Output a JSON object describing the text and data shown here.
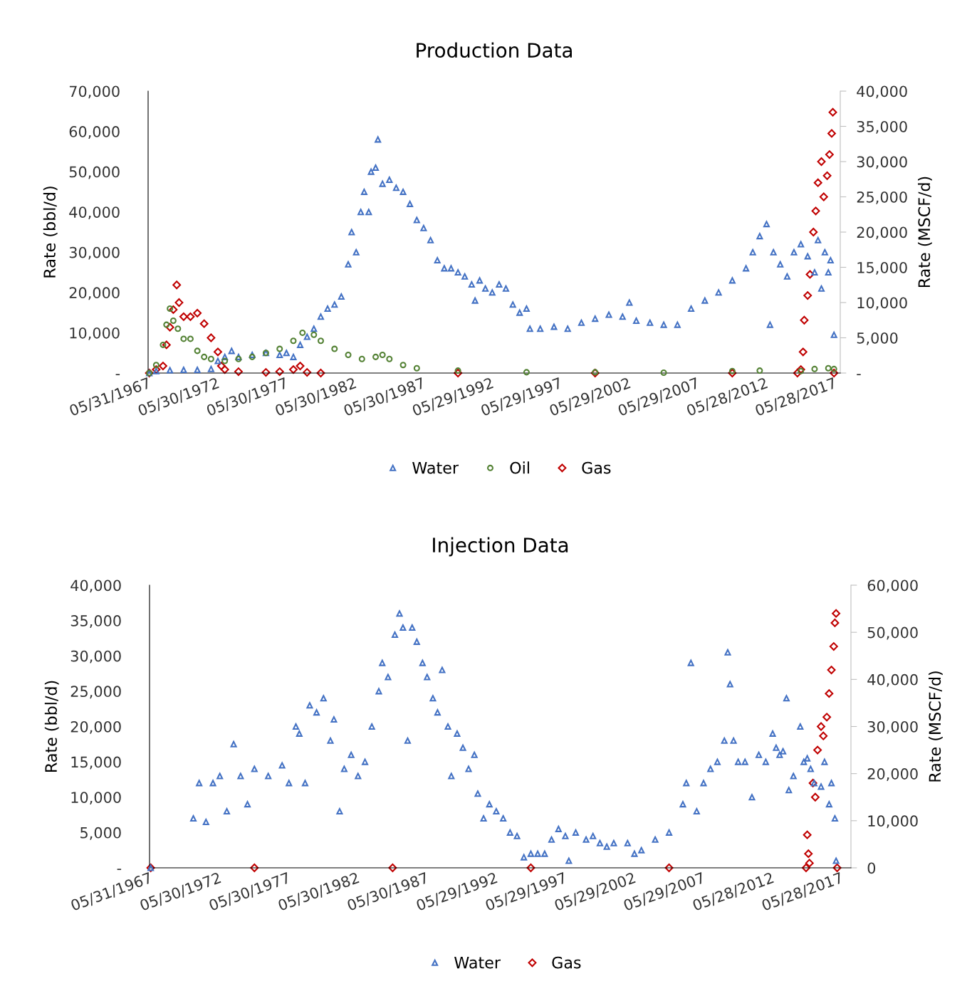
{
  "chart_data": [
    {
      "type": "scatter",
      "title": "Production Data",
      "ylabel": "Rate (bbl/d)",
      "y2label": "Rate (MSCF/d)",
      "legend": "bottom",
      "grid": false,
      "xlim": [
        "1967-05-31",
        "2017-11-15"
      ],
      "xticks": [
        {
          "value": "1967-05-31",
          "label": "05/31/1967"
        },
        {
          "value": "1972-05-30",
          "label": "05/30/1972"
        },
        {
          "value": "1977-05-30",
          "label": "05/30/1977"
        },
        {
          "value": "1982-05-30",
          "label": "05/30/1982"
        },
        {
          "value": "1987-05-30",
          "label": "05/30/1987"
        },
        {
          "value": "1992-05-29",
          "label": "05/29/1992"
        },
        {
          "value": "1997-05-29",
          "label": "05/29/1997"
        },
        {
          "value": "2002-05-29",
          "label": "05/29/2002"
        },
        {
          "value": "2007-05-29",
          "label": "05/29/2007"
        },
        {
          "value": "2012-05-28",
          "label": "05/28/2012"
        },
        {
          "value": "2017-05-28",
          "label": "05/28/2017"
        }
      ],
      "ylim": [
        0,
        70000
      ],
      "yticks": [
        {
          "value": 0,
          "label": "-"
        },
        {
          "value": 10000,
          "label": "10,000"
        },
        {
          "value": 20000,
          "label": "20,000"
        },
        {
          "value": 30000,
          "label": "30,000"
        },
        {
          "value": 40000,
          "label": "40,000"
        },
        {
          "value": 50000,
          "label": "50,000"
        },
        {
          "value": 60000,
          "label": "60,000"
        },
        {
          "value": 70000,
          "label": "70,000"
        }
      ],
      "y2lim": [
        0,
        40000
      ],
      "y2ticks": [
        {
          "value": 0,
          "label": "-"
        },
        {
          "value": 5000,
          "label": "5,000"
        },
        {
          "value": 10000,
          "label": "10,000"
        },
        {
          "value": 15000,
          "label": "15,000"
        },
        {
          "value": 20000,
          "label": "20,000"
        },
        {
          "value": 25000,
          "label": "25,000"
        },
        {
          "value": 30000,
          "label": "30,000"
        },
        {
          "value": 35000,
          "label": "35,000"
        },
        {
          "value": 40000,
          "label": "40,000"
        }
      ],
      "series": [
        {
          "name": "Water",
          "color": "#4472c4",
          "marker": "triangle",
          "x": [
            "1967-07",
            "1968-01",
            "1969-01",
            "1970-01",
            "1971-01",
            "1972-01",
            "1972-07",
            "1973-01",
            "1973-07",
            "1974-01",
            "1975-01",
            "1976-01",
            "1977-01",
            "1977-07",
            "1978-01",
            "1978-07",
            "1979-01",
            "1979-07",
            "1980-01",
            "1980-07",
            "1981-01",
            "1981-07",
            "1982-01",
            "1982-04",
            "1982-08",
            "1982-12",
            "1983-03",
            "1983-07",
            "1983-09",
            "1984-01",
            "1984-03",
            "1984-07",
            "1985-01",
            "1985-07",
            "1986-01",
            "1986-07",
            "1987-01",
            "1987-07",
            "1988-01",
            "1988-07",
            "1989-01",
            "1989-07",
            "1990-01",
            "1990-07",
            "1991-01",
            "1991-04",
            "1991-08",
            "1992-01",
            "1992-07",
            "1993-01",
            "1993-07",
            "1994-01",
            "1994-07",
            "1995-01",
            "1995-04",
            "1996-01",
            "1997-01",
            "1998-01",
            "1999-01",
            "2000-01",
            "2001-01",
            "2002-01",
            "2002-07",
            "2003-01",
            "2004-01",
            "2005-01",
            "2006-01",
            "2007-01",
            "2008-01",
            "2009-01",
            "2010-01",
            "2011-01",
            "2011-07",
            "2012-01",
            "2012-07",
            "2012-10",
            "2013-01",
            "2013-07",
            "2014-01",
            "2014-07",
            "2015-01",
            "2015-07",
            "2016-01",
            "2016-04",
            "2016-07",
            "2016-10",
            "2017-01",
            "2017-03",
            "2017-06"
          ],
          "values": [
            0,
            500,
            700,
            800,
            800,
            1000,
            3000,
            4000,
            5500,
            4000,
            4500,
            5000,
            4500,
            5000,
            4000,
            7000,
            9000,
            11000,
            14000,
            16000,
            17000,
            19000,
            27000,
            35000,
            30000,
            40000,
            45000,
            40000,
            50000,
            51000,
            58000,
            47000,
            48000,
            46000,
            45000,
            42000,
            38000,
            36000,
            33000,
            28000,
            26000,
            26000,
            25000,
            24000,
            22000,
            18000,
            23000,
            21000,
            20000,
            22000,
            21000,
            17000,
            15000,
            16000,
            11000,
            11000,
            11500,
            11000,
            12500,
            13500,
            14500,
            14000,
            17500,
            13000,
            12500,
            12000,
            12000,
            16000,
            18000,
            20000,
            23000,
            26000,
            30000,
            34000,
            37000,
            12000,
            30000,
            27000,
            24000,
            30000,
            32000,
            29000,
            25000,
            33000,
            21000,
            30000,
            25000,
            28000,
            9500
          ]
        },
        {
          "name": "Oil",
          "color": "#548235",
          "marker": "circle",
          "x": [
            "1967-07",
            "1968-01",
            "1968-07",
            "1968-10",
            "1969-01",
            "1969-04",
            "1969-08",
            "1970-01",
            "1970-07",
            "1971-01",
            "1971-07",
            "1972-01",
            "1973-01",
            "1974-01",
            "1975-01",
            "1976-01",
            "1977-01",
            "1978-01",
            "1978-09",
            "1979-07",
            "1980-01",
            "1981-01",
            "1982-01",
            "1983-01",
            "1984-01",
            "1984-07",
            "1985-01",
            "1986-01",
            "1987-01",
            "1990-01",
            "1995-01",
            "2000-01",
            "2005-01",
            "2010-01",
            "2012-01",
            "2015-01",
            "2016-01",
            "2017-01",
            "2017-06"
          ],
          "values": [
            0,
            2000,
            7000,
            12000,
            16000,
            13000,
            11000,
            8500,
            8500,
            5500,
            4000,
            3500,
            3000,
            3500,
            4000,
            5000,
            6000,
            8000,
            10000,
            9500,
            8000,
            6000,
            4500,
            3500,
            4000,
            4500,
            3500,
            2000,
            1200,
            600,
            200,
            200,
            100,
            500,
            600,
            500,
            1000,
            1200,
            1000
          ]
        },
        {
          "name": "Gas",
          "color": "#c00000",
          "marker": "diamond",
          "axis": "y2",
          "x": [
            "1967-07",
            "1968-01",
            "1968-07",
            "1968-10",
            "1969-01",
            "1969-04",
            "1969-07",
            "1969-09",
            "1970-01",
            "1970-07",
            "1971-01",
            "1971-07",
            "1972-01",
            "1972-07",
            "1972-10",
            "1973-01",
            "1974-01",
            "1976-01",
            "1977-01",
            "1978-01",
            "1978-07",
            "1979-01",
            "1980-01",
            "1990-01",
            "2000-01",
            "2010-01",
            "2014-10",
            "2015-01",
            "2015-03",
            "2015-04",
            "2015-07",
            "2015-09",
            "2015-12",
            "2016-02",
            "2016-04",
            "2016-07",
            "2016-09",
            "2016-12",
            "2017-02",
            "2017-04",
            "2017-05",
            "2017-06"
          ],
          "values": [
            0,
            500,
            1000,
            4000,
            6500,
            9000,
            12500,
            10000,
            8000,
            8000,
            8500,
            7000,
            5000,
            3000,
            1000,
            500,
            200,
            100,
            200,
            500,
            1000,
            100,
            0,
            0,
            0,
            0,
            0,
            500,
            3000,
            7500,
            11000,
            14000,
            20000,
            23000,
            27000,
            30000,
            25000,
            28000,
            31000,
            34000,
            37000,
            0
          ]
        }
      ]
    },
    {
      "type": "scatter",
      "title": "Injection Data",
      "ylabel": "Rate (bbl/d)",
      "y2label": "Rate (MSCF/d)",
      "legend": "bottom",
      "grid": false,
      "xlim": [
        "1967-05-31",
        "2018-03-01"
      ],
      "xticks": [
        {
          "value": "1967-05-31",
          "label": "05/31/1967"
        },
        {
          "value": "1972-05-30",
          "label": "05/30/1972"
        },
        {
          "value": "1977-05-30",
          "label": "05/30/1977"
        },
        {
          "value": "1982-05-30",
          "label": "05/30/1982"
        },
        {
          "value": "1987-05-30",
          "label": "05/30/1987"
        },
        {
          "value": "1992-05-29",
          "label": "05/29/1992"
        },
        {
          "value": "1997-05-29",
          "label": "05/29/1997"
        },
        {
          "value": "2002-05-29",
          "label": "05/29/2002"
        },
        {
          "value": "2007-05-29",
          "label": "05/29/2007"
        },
        {
          "value": "2012-05-28",
          "label": "05/28/2012"
        },
        {
          "value": "2017-05-28",
          "label": "05/28/2017"
        }
      ],
      "ylim": [
        0,
        40000
      ],
      "yticks": [
        {
          "value": 0,
          "label": "-"
        },
        {
          "value": 5000,
          "label": "5,000"
        },
        {
          "value": 10000,
          "label": "10,000"
        },
        {
          "value": 15000,
          "label": "15,000"
        },
        {
          "value": 20000,
          "label": "20,000"
        },
        {
          "value": 25000,
          "label": "25,000"
        },
        {
          "value": 30000,
          "label": "30,000"
        },
        {
          "value": 35000,
          "label": "35,000"
        },
        {
          "value": 40000,
          "label": "40,000"
        }
      ],
      "y2lim": [
        0,
        60000
      ],
      "y2ticks": [
        0,
        {
          "value": 10000,
          "label": "10,000"
        },
        {
          "value": 20000,
          "label": "20,000"
        },
        {
          "value": 30000,
          "label": "30,000"
        },
        {
          "value": 40000,
          "label": "40,000"
        },
        {
          "value": 50000,
          "label": "50,000"
        },
        {
          "value": 60000,
          "label": "60,000"
        }
      ],
      "series": [
        {
          "name": "Water",
          "color": "#4472c4",
          "marker": "triangle",
          "x": [
            "1967-07",
            "1970-08",
            "1971-01",
            "1971-07",
            "1972-01",
            "1972-07",
            "1973-01",
            "1973-07",
            "1974-01",
            "1974-07",
            "1975-01",
            "1976-01",
            "1977-01",
            "1977-07",
            "1978-01",
            "1978-04",
            "1978-09",
            "1979-01",
            "1979-07",
            "1980-01",
            "1980-07",
            "1980-10",
            "1981-03",
            "1981-07",
            "1982-01",
            "1982-07",
            "1983-01",
            "1983-07",
            "1984-01",
            "1984-04",
            "1984-09",
            "1985-03",
            "1985-07",
            "1985-10",
            "1986-02",
            "1986-06",
            "1986-10",
            "1987-03",
            "1987-07",
            "1987-12",
            "1988-04",
            "1988-08",
            "1989-01",
            "1989-04",
            "1989-09",
            "1990-02",
            "1990-07",
            "1990-12",
            "1991-03",
            "1991-08",
            "1992-01",
            "1992-07",
            "1993-01",
            "1993-07",
            "1994-01",
            "1994-07",
            "1995-01",
            "1995-07",
            "1996-01",
            "1996-07",
            "1997-01",
            "1997-07",
            "1997-10",
            "1998-04",
            "1999-01",
            "1999-07",
            "2000-01",
            "2000-07",
            "2001-01",
            "2002-01",
            "2002-07",
            "2003-01",
            "2004-01",
            "2005-01",
            "2006-01",
            "2006-04",
            "2006-08",
            "2007-01",
            "2007-07",
            "2008-01",
            "2008-07",
            "2009-01",
            "2009-04",
            "2009-06",
            "2009-09",
            "2010-01",
            "2010-07",
            "2011-01",
            "2011-07",
            "2012-01",
            "2012-07",
            "2012-10",
            "2013-01",
            "2013-04",
            "2013-07",
            "2013-09",
            "2014-01",
            "2014-07",
            "2014-10",
            "2015-01",
            "2015-04",
            "2015-07",
            "2016-01",
            "2016-04",
            "2016-08",
            "2016-10",
            "2017-01",
            "2017-02"
          ],
          "values": [
            0,
            7000,
            12000,
            6500,
            12000,
            13000,
            8000,
            17500,
            13000,
            9000,
            14000,
            13000,
            14500,
            12000,
            20000,
            19000,
            12000,
            23000,
            22000,
            24000,
            18000,
            21000,
            8000,
            14000,
            16000,
            13000,
            15000,
            20000,
            25000,
            29000,
            27000,
            33000,
            36000,
            34000,
            18000,
            34000,
            32000,
            29000,
            27000,
            24000,
            22000,
            28000,
            20000,
            13000,
            19000,
            17000,
            14000,
            16000,
            10500,
            7000,
            9000,
            8000,
            7000,
            5000,
            4500,
            1500,
            2000,
            2000,
            2000,
            4000,
            5500,
            4500,
            1000,
            5000,
            4000,
            4500,
            3500,
            3000,
            3500,
            3500,
            2000,
            2500,
            4000,
            5000,
            9000,
            12000,
            29000,
            8000,
            12000,
            14000,
            15000,
            18000,
            30500,
            26000,
            18000,
            15000,
            15000,
            10000,
            16000,
            15000,
            19000,
            17000,
            16000,
            16500,
            24000,
            11000,
            13000,
            20000,
            15000,
            15500,
            14000,
            12000,
            11500,
            15000,
            9000,
            12000,
            7000,
            1000
          ]
        },
        {
          "name": "Gas",
          "color": "#c00000",
          "marker": "diamond",
          "axis": "y2",
          "x": [
            "1967-07",
            "1975-01",
            "1985-01",
            "1995-01",
            "2005-01",
            "2014-12",
            "2015-01",
            "2015-02",
            "2015-03",
            "2015-06",
            "2015-08",
            "2015-10",
            "2016-01",
            "2016-03",
            "2016-06",
            "2016-08",
            "2016-10",
            "2016-12",
            "2017-01",
            "2017-02",
            "2017-03"
          ],
          "values": [
            0,
            0,
            0,
            0,
            0,
            0,
            7000,
            3000,
            1000,
            18000,
            15000,
            25000,
            30000,
            28000,
            32000,
            37000,
            42000,
            47000,
            52000,
            54000,
            0
          ]
        }
      ]
    }
  ]
}
